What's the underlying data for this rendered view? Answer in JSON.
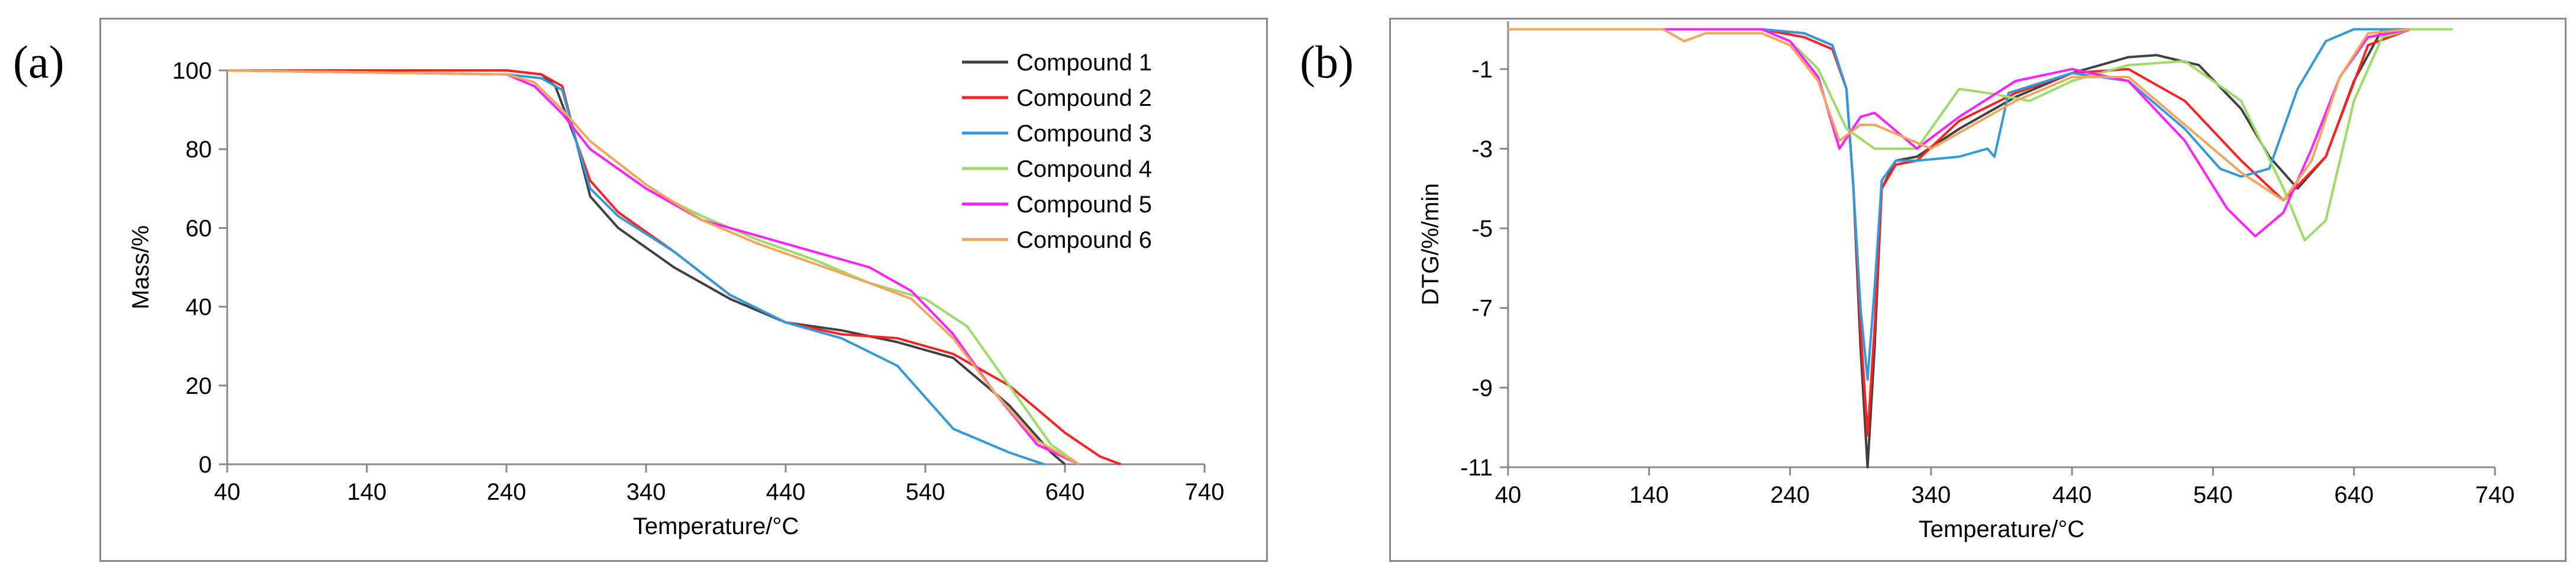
{
  "panels": {
    "a": {
      "label": "(a)"
    },
    "b": {
      "label": "(b)"
    }
  },
  "colors": {
    "Compound 1": "#404040",
    "Compound 2": "#ff2020",
    "Compound 3": "#3399dd",
    "Compound 4": "#99dd66",
    "Compound 5": "#ff20ff",
    "Compound 6": "#f5a45c"
  },
  "chart_data": [
    {
      "type": "line",
      "title": "",
      "xlabel": "Temperature/°C",
      "ylabel": "Mass/%",
      "xlim": [
        40,
        740
      ],
      "ylim": [
        0,
        100
      ],
      "xticks": [
        40,
        140,
        240,
        340,
        440,
        540,
        640,
        740
      ],
      "yticks": [
        0,
        20,
        40,
        60,
        80,
        100
      ],
      "grid": false,
      "legend": "top-right",
      "series": [
        {
          "name": "Compound 1",
          "x": [
            40,
            240,
            265,
            275,
            290,
            300,
            320,
            360,
            400,
            440,
            480,
            520,
            560,
            600,
            630,
            640
          ],
          "y": [
            100,
            100,
            99,
            96,
            82,
            68,
            60,
            50,
            42,
            36,
            34,
            31,
            27,
            15,
            3,
            0
          ]
        },
        {
          "name": "Compound 2",
          "x": [
            40,
            240,
            265,
            280,
            290,
            300,
            320,
            360,
            400,
            440,
            480,
            520,
            560,
            600,
            640,
            665,
            680
          ],
          "y": [
            100,
            100,
            99,
            96,
            82,
            72,
            64,
            54,
            43,
            36,
            33,
            32,
            28,
            20,
            8,
            2,
            0
          ]
        },
        {
          "name": "Compound 3",
          "x": [
            40,
            240,
            265,
            280,
            290,
            300,
            320,
            360,
            400,
            440,
            480,
            520,
            545,
            560,
            600,
            625
          ],
          "y": [
            100,
            99,
            98,
            95,
            82,
            70,
            63,
            54,
            43,
            36,
            32,
            25,
            15,
            9,
            3,
            0
          ]
        },
        {
          "name": "Compound 4",
          "x": [
            40,
            240,
            260,
            280,
            300,
            340,
            380,
            420,
            460,
            500,
            540,
            570,
            600,
            630,
            650
          ],
          "y": [
            100,
            99,
            96,
            89,
            80,
            70,
            63,
            57,
            52,
            46,
            42,
            35,
            20,
            5,
            0
          ]
        },
        {
          "name": "Compound 5",
          "x": [
            40,
            240,
            260,
            280,
            300,
            340,
            380,
            420,
            460,
            500,
            530,
            560,
            590,
            620,
            650
          ],
          "y": [
            100,
            99,
            96,
            89,
            80,
            70,
            62,
            58,
            54,
            50,
            44,
            33,
            18,
            5,
            0
          ]
        },
        {
          "name": "Compound 6",
          "x": [
            40,
            240,
            260,
            280,
            300,
            340,
            380,
            420,
            460,
            500,
            530,
            560,
            590,
            620,
            650
          ],
          "y": [
            100,
            99,
            97,
            90,
            82,
            71,
            62,
            56,
            51,
            46,
            42,
            32,
            18,
            6,
            0
          ]
        }
      ]
    },
    {
      "type": "line",
      "title": "",
      "xlabel": "Temperature/°C",
      "ylabel": "DTG/%/min",
      "xlim": [
        40,
        740
      ],
      "ylim": [
        -11,
        0.2
      ],
      "xticks": [
        40,
        140,
        240,
        340,
        440,
        540,
        640,
        740
      ],
      "yticks": [
        -1,
        -3,
        -5,
        -7,
        -9,
        -11
      ],
      "grid": false,
      "legend": "none",
      "series": [
        {
          "name": "Compound 1",
          "x": [
            40,
            220,
            250,
            270,
            280,
            285,
            290,
            295,
            300,
            305,
            315,
            330,
            360,
            400,
            440,
            480,
            500,
            530,
            560,
            580,
            600,
            620,
            640,
            660,
            680
          ],
          "y": [
            0,
            0,
            -0.1,
            -0.4,
            -1.5,
            -4,
            -8,
            -11,
            -8,
            -4,
            -3.3,
            -3.2,
            -2.5,
            -1.7,
            -1.1,
            -0.7,
            -0.65,
            -0.9,
            -2,
            -3.2,
            -4,
            -3.2,
            -1.3,
            0,
            0
          ]
        },
        {
          "name": "Compound 2",
          "x": [
            40,
            220,
            250,
            270,
            280,
            285,
            290,
            295,
            300,
            305,
            315,
            330,
            360,
            400,
            440,
            480,
            520,
            560,
            590,
            620,
            650,
            680
          ],
          "y": [
            0,
            0,
            -0.2,
            -0.5,
            -1.5,
            -4,
            -7.5,
            -10.2,
            -7.5,
            -4,
            -3.4,
            -3.3,
            -2.3,
            -1.6,
            -1.1,
            -1,
            -1.8,
            -3.3,
            -4.3,
            -3.2,
            -0.4,
            0
          ]
        },
        {
          "name": "Compound 3",
          "x": [
            40,
            220,
            250,
            270,
            280,
            285,
            290,
            295,
            300,
            305,
            315,
            330,
            360,
            380,
            385,
            395,
            440,
            480,
            520,
            545,
            560,
            580,
            600,
            620,
            640,
            680
          ],
          "y": [
            0,
            0,
            -0.1,
            -0.4,
            -1.5,
            -4,
            -7,
            -8.8,
            -6.5,
            -3.8,
            -3.3,
            -3.3,
            -3.2,
            -3,
            -3.2,
            -1.6,
            -1.1,
            -1.3,
            -2.5,
            -3.5,
            -3.7,
            -3.5,
            -1.5,
            -0.3,
            0,
            0
          ]
        },
        {
          "name": "Compound 4",
          "x": [
            40,
            220,
            240,
            260,
            280,
            300,
            330,
            360,
            380,
            410,
            440,
            480,
            520,
            560,
            590,
            605,
            620,
            640,
            660,
            680,
            710
          ],
          "y": [
            0,
            0,
            -0.3,
            -1,
            -2.5,
            -3,
            -3,
            -1.5,
            -1.6,
            -1.8,
            -1.3,
            -0.9,
            -0.8,
            -1.8,
            -4,
            -5.3,
            -4.8,
            -1.8,
            -0.2,
            0,
            0
          ]
        },
        {
          "name": "Compound 5",
          "x": [
            40,
            220,
            240,
            260,
            275,
            290,
            300,
            310,
            330,
            360,
            400,
            440,
            480,
            520,
            550,
            570,
            590,
            610,
            630,
            650,
            680
          ],
          "y": [
            0,
            0,
            -0.3,
            -1.2,
            -3,
            -2.2,
            -2.1,
            -2.4,
            -3,
            -2.2,
            -1.3,
            -1,
            -1.3,
            -2.8,
            -4.5,
            -5.2,
            -4.6,
            -3,
            -1.2,
            -0.2,
            0
          ]
        },
        {
          "name": "Compound 6",
          "x": [
            40,
            150,
            165,
            180,
            220,
            240,
            260,
            275,
            290,
            300,
            320,
            340,
            360,
            400,
            440,
            480,
            520,
            560,
            590,
            610,
            630,
            650,
            680
          ],
          "y": [
            0,
            0,
            -0.3,
            -0.1,
            -0.1,
            -0.4,
            -1.3,
            -2.8,
            -2.4,
            -2.4,
            -2.7,
            -3,
            -2.6,
            -1.8,
            -1.2,
            -1.2,
            -2.4,
            -3.6,
            -4.3,
            -3.3,
            -1.2,
            -0.1,
            0
          ]
        }
      ]
    }
  ]
}
